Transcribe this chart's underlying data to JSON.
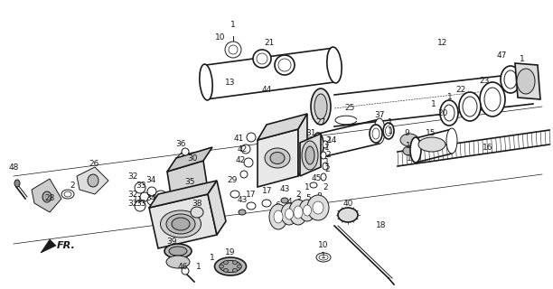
{
  "background_color": "#ffffff",
  "line_color": "#1a1a1a",
  "fig_width": 6.12,
  "fig_height": 3.2,
  "dpi": 100,
  "components": []
}
